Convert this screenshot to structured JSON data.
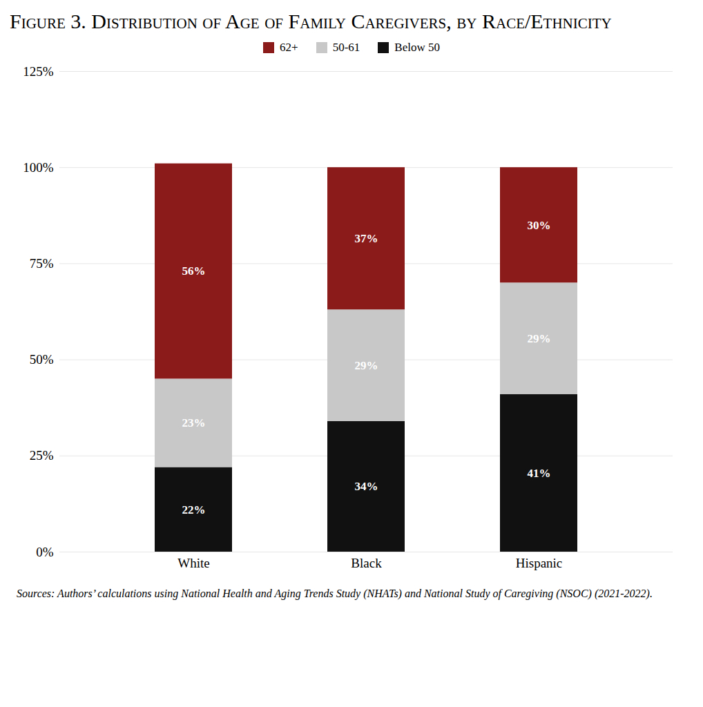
{
  "chart_data": {
    "type": "bar",
    "title": "Figure 3. Distribution of Age of Family Caregivers, by Race/Ethnicity",
    "categories": [
      "White",
      "Black",
      "Hispanic"
    ],
    "series": [
      {
        "name": "Below 50",
        "color": "#111111",
        "values": [
          22,
          34,
          41
        ],
        "value_labels": [
          "22%",
          "34%",
          "41%"
        ]
      },
      {
        "name": "50-61",
        "color": "#C8C8C8",
        "values": [
          23,
          29,
          29
        ],
        "value_labels": [
          "23%",
          "29%",
          "29%"
        ]
      },
      {
        "name": "62+",
        "color": "#8B1A1A",
        "values": [
          56,
          37,
          30
        ],
        "value_labels": [
          "56%",
          "37%",
          "30%"
        ]
      }
    ],
    "stacked": true,
    "data_labels": true,
    "ylim": [
      0,
      125
    ],
    "yticks": [
      {
        "value": 0,
        "label": "0%"
      },
      {
        "value": 25,
        "label": "25%"
      },
      {
        "value": 50,
        "label": "50%"
      },
      {
        "value": 75,
        "label": "75%"
      },
      {
        "value": 100,
        "label": "100%"
      },
      {
        "value": 125,
        "label": "125%"
      }
    ],
    "grid": true,
    "legend": "top",
    "annotations": [
      "Sources: Authors’ calculations using National Health and Aging Trends Study (NHATs) and National Study of Caregiving (NSOC) (2021-2022)."
    ]
  }
}
